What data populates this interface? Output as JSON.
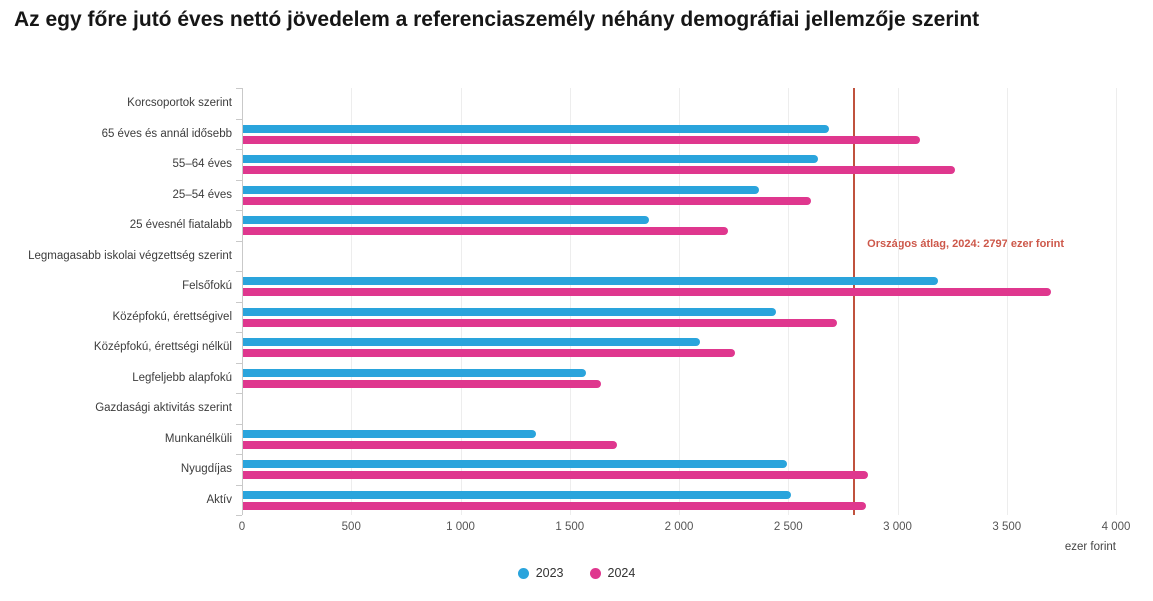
{
  "title": "Az egy főre jutó éves nettó jövedelem a referenciaszemély néhány demográfiai jellemzője szerint",
  "colors": {
    "series_2023": "#2aa4dc",
    "series_2024": "#df378e",
    "reference_line": "#c0523e",
    "reference_text": "#cd584a"
  },
  "chart_data": {
    "type": "bar",
    "orientation": "horizontal",
    "title": "Az egy főre jutó éves nettó jövedelem a referenciaszemély néhány demográfiai jellemzője szerint",
    "unit_label": "ezer forint",
    "xlim": [
      0,
      4000
    ],
    "tick_step": 500,
    "tick_labels": [
      "0",
      "500",
      "1 000",
      "1 500",
      "2 000",
      "2 500",
      "3 000",
      "3 500",
      "4 000"
    ],
    "grid": true,
    "legend_position": "bottom",
    "categories": [
      "Korcsoportok szerint",
      "65 éves és annál idősebb",
      "55–64 éves",
      "25–54 éves",
      "25 évesnél fiatalabb",
      "Legmagasabb iskolai végzettség szerint",
      "Felsőfokú",
      "Középfokú, érettségivel",
      "Középfokú, érettségi nélkül",
      "Legfeljebb alapfokú",
      "Gazdasági aktivitás szerint",
      "Munkanélküli",
      "Nyugdíjas",
      "Aktív"
    ],
    "header_row_indices": [
      0,
      5,
      10
    ],
    "series": [
      {
        "name": "2023",
        "color": "#2aa4dc",
        "values": [
          null,
          2680,
          2630,
          2360,
          1860,
          null,
          3180,
          2440,
          2090,
          1570,
          null,
          1340,
          2490,
          2510
        ]
      },
      {
        "name": "2024",
        "color": "#df378e",
        "values": [
          null,
          3100,
          3260,
          2600,
          2220,
          null,
          3700,
          2720,
          2250,
          1640,
          null,
          1710,
          2860,
          2850
        ]
      }
    ],
    "reference_line": {
      "value": 2797,
      "label": "Országos átlag, 2024: 2797 ezer forint",
      "color": "#c0523e"
    }
  }
}
